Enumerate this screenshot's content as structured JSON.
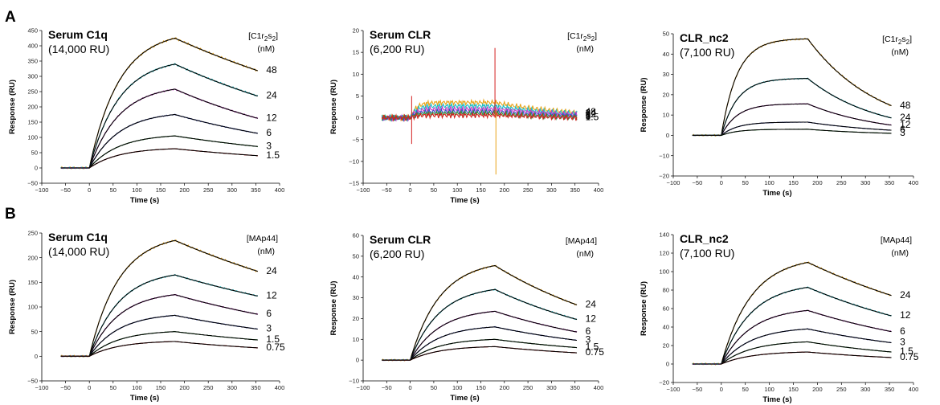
{
  "figure": {
    "rows": [
      {
        "label": "A",
        "analyte": "[C1r",
        "analyte_sub1": "2",
        "analyte_mid": "s",
        "analyte_sub2": "2",
        "analyte_end": "]"
      },
      {
        "label": "B",
        "analyte": "[MAp44]",
        "analyte_sub1": "",
        "analyte_mid": "",
        "analyte_sub2": "",
        "analyte_end": ""
      }
    ],
    "unit": "(nM)",
    "xlabel": "Time (s)",
    "ylabel": "Response (RU)",
    "xticks": [
      "−100",
      "−50",
      "0",
      "50",
      "100",
      "150",
      "200",
      "250",
      "300",
      "350",
      "400"
    ]
  },
  "chart_data": [
    {
      "panel": "A1",
      "type": "line",
      "title": "Serum C1q",
      "subtitle": "(14,000 RU)",
      "xlabel": "Time (s)",
      "ylabel": "Response (RU)",
      "xlim": [
        -100,
        400
      ],
      "ylim": [
        -50,
        450
      ],
      "yticks": [
        -50,
        0,
        50,
        100,
        150,
        200,
        250,
        300,
        350,
        400,
        450
      ],
      "concentration_labels": [
        "48",
        "24",
        "12",
        "6",
        "3",
        "1.5"
      ],
      "series": [
        {
          "conc": "48",
          "peak": 425,
          "end": 318
        },
        {
          "conc": "24",
          "peak": 340,
          "end": 235
        },
        {
          "conc": "12",
          "peak": 258,
          "end": 162
        },
        {
          "conc": "6",
          "peak": 175,
          "end": 113
        },
        {
          "conc": "3",
          "peak": 105,
          "end": 70
        },
        {
          "conc": "1.5",
          "peak": 63,
          "end": 40
        }
      ],
      "kinetic_shape": "normal",
      "spikes": false
    },
    {
      "panel": "A2",
      "type": "line",
      "title": "Serum CLR",
      "subtitle": "(6,200 RU)",
      "xlabel": "Time (s)",
      "ylabel": "Response (RU)",
      "xlim": [
        -100,
        400
      ],
      "ylim": [
        -15,
        20
      ],
      "yticks": [
        -15,
        -10,
        -5,
        0,
        5,
        10,
        15,
        20
      ],
      "concentration_labels": [
        "48",
        "24",
        "12",
        "6",
        "3",
        "1.5"
      ],
      "series": [
        {
          "conc": "48",
          "peak": 3.5,
          "end": 1.2
        },
        {
          "conc": "24",
          "peak": 2.7,
          "end": 0.9
        },
        {
          "conc": "12",
          "peak": 2.0,
          "end": 0.7
        },
        {
          "conc": "6",
          "peak": 1.4,
          "end": 0.4
        },
        {
          "conc": "3",
          "peak": 1.0,
          "end": 0.2
        },
        {
          "conc": "1.5",
          "peak": 0.6,
          "end": 0.0
        }
      ],
      "kinetic_shape": "flat",
      "spikes": true,
      "no_fit": true
    },
    {
      "panel": "A3",
      "type": "line",
      "title": "CLR_nc2",
      "subtitle": "(7,100 RU)",
      "xlabel": "Time (s)",
      "ylabel": "Response (RU)",
      "xlim": [
        -100,
        400
      ],
      "ylim": [
        -20,
        50
      ],
      "yticks": [
        -20,
        -10,
        0,
        10,
        20,
        30,
        40,
        50
      ],
      "concentration_labels": [
        "48",
        "24",
        "12",
        "6",
        "3"
      ],
      "series": [
        {
          "conc": "48",
          "peak": 47.5,
          "end": 14.5
        },
        {
          "conc": "24",
          "peak": 28,
          "end": 8.5
        },
        {
          "conc": "12",
          "peak": 15.5,
          "end": 5
        },
        {
          "conc": "6",
          "peak": 6.5,
          "end": 2.5
        },
        {
          "conc": "3",
          "peak": 3,
          "end": 1
        }
      ],
      "kinetic_shape": "fast",
      "spikes": false
    },
    {
      "panel": "B1",
      "type": "line",
      "title": "Serum C1q",
      "subtitle": "(14,000 RU)",
      "xlabel": "Time (s)",
      "ylabel": "Response (RU)",
      "xlim": [
        -100,
        400
      ],
      "ylim": [
        -50,
        250
      ],
      "yticks": [
        -50,
        0,
        50,
        100,
        150,
        200,
        250
      ],
      "concentration_labels": [
        "24",
        "12",
        "6",
        "3",
        "1.5",
        "0.75"
      ],
      "series": [
        {
          "conc": "24",
          "peak": 235,
          "end": 172
        },
        {
          "conc": "12",
          "peak": 165,
          "end": 122
        },
        {
          "conc": "6",
          "peak": 125,
          "end": 85
        },
        {
          "conc": "3",
          "peak": 83,
          "end": 55
        },
        {
          "conc": "1.5",
          "peak": 50,
          "end": 33
        },
        {
          "conc": "0.75",
          "peak": 30,
          "end": 17
        }
      ],
      "kinetic_shape": "normal",
      "spikes": false
    },
    {
      "panel": "B2",
      "type": "line",
      "title": "Serum CLR",
      "subtitle": "(6,200 RU)",
      "xlabel": "Time (s)",
      "ylabel": "Response (RU)",
      "xlim": [
        -100,
        400
      ],
      "ylim": [
        -10,
        60
      ],
      "yticks": [
        -10,
        0,
        10,
        20,
        30,
        40,
        50,
        60
      ],
      "concentration_labels": [
        "24",
        "12",
        "6",
        "3",
        "1.5",
        "0.75"
      ],
      "series": [
        {
          "conc": "24",
          "peak": 45.5,
          "end": 26.5
        },
        {
          "conc": "12",
          "peak": 34,
          "end": 19.5
        },
        {
          "conc": "6",
          "peak": 23.5,
          "end": 13.5
        },
        {
          "conc": "3",
          "peak": 16,
          "end": 9.5
        },
        {
          "conc": "1.5",
          "peak": 10,
          "end": 6
        },
        {
          "conc": "0.75",
          "peak": 6.5,
          "end": 3.5
        }
      ],
      "kinetic_shape": "normal",
      "spikes": false
    },
    {
      "panel": "B3",
      "type": "line",
      "title": "CLR_nc2",
      "subtitle": "(7,100 RU)",
      "xlabel": "Time (s)",
      "ylabel": "Response (RU)",
      "xlim": [
        -100,
        400
      ],
      "ylim": [
        -20,
        140
      ],
      "yticks": [
        -20,
        0,
        20,
        40,
        60,
        80,
        100,
        120,
        140
      ],
      "concentration_labels": [
        "24",
        "12",
        "6",
        "3",
        "1.5",
        "0.75"
      ],
      "series": [
        {
          "conc": "24",
          "peak": 110,
          "end": 74
        },
        {
          "conc": "12",
          "peak": 83,
          "end": 52
        },
        {
          "conc": "6",
          "peak": 58,
          "end": 35
        },
        {
          "conc": "3",
          "peak": 38,
          "end": 23
        },
        {
          "conc": "1.5",
          "peak": 24,
          "end": 13
        },
        {
          "conc": "0.75",
          "peak": 13,
          "end": 7
        }
      ],
      "kinetic_shape": "normal",
      "spikes": false
    }
  ],
  "series_colors": [
    "#e8a317",
    "#17bcc4",
    "#c43ac4",
    "#3a4fc8",
    "#2e9a3a",
    "#d42020"
  ]
}
